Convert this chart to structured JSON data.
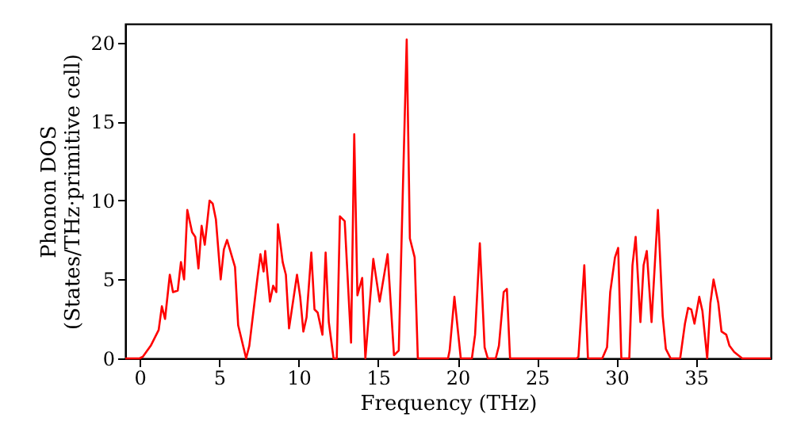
{
  "chart_data": {
    "type": "line",
    "xlabel": "Frequency (THz)",
    "ylabel": "Phonon DOS\n(States/THz·primitive cell)",
    "xlim": [
      -0.9,
      39.7
    ],
    "ylim": [
      0,
      21.2
    ],
    "xticks": [
      0,
      5,
      10,
      15,
      20,
      25,
      30,
      35
    ],
    "yticks": [
      0,
      5,
      10,
      15,
      20
    ],
    "grid": false,
    "x": [
      -0.9,
      0,
      0.2,
      0.7,
      1.2,
      1.4,
      1.6,
      1.9,
      2.1,
      2.4,
      2.6,
      2.8,
      3.0,
      3.3,
      3.5,
      3.7,
      3.9,
      4.1,
      4.4,
      4.6,
      4.8,
      5.1,
      5.3,
      5.5,
      6.0,
      6.2,
      6.7,
      6.9,
      7.4,
      7.6,
      7.8,
      7.9,
      8.2,
      8.4,
      8.6,
      8.7,
      9.0,
      9.2,
      9.4,
      9.9,
      10.1,
      10.3,
      10.5,
      10.8,
      11.0,
      11.2,
      11.5,
      11.7,
      11.9,
      12.2,
      12.4,
      12.6,
      12.9,
      13.3,
      13.5,
      13.7,
      14.0,
      14.2,
      14.7,
      15.1,
      15.6,
      16.0,
      16.3,
      16.8,
      17.0,
      17.3,
      17.5,
      19.4,
      19.5,
      19.8,
      20.2,
      20.9,
      21.1,
      21.4,
      21.7,
      21.9,
      22.4,
      22.6,
      22.9,
      23.1,
      23.3,
      27.5,
      27.6,
      27.97,
      28.2,
      29.1,
      29.4,
      29.6,
      29.9,
      30.1,
      30.3,
      30.8,
      31.0,
      31.2,
      31.5,
      31.7,
      31.9,
      32.2,
      32.6,
      32.9,
      33.1,
      33.4,
      34.0,
      34.3,
      34.5,
      34.7,
      34.9,
      35.2,
      35.4,
      35.7,
      35.9,
      36.1,
      36.4,
      36.6,
      36.9,
      37.1,
      37.4,
      37.9,
      39.7
    ],
    "series": [
      {
        "color": "#ff0000",
        "values": [
          0,
          0,
          0.1,
          0.8,
          1.8,
          3.3,
          2.5,
          5.3,
          4.2,
          4.3,
          6.1,
          5.0,
          9.4,
          8.0,
          7.7,
          5.7,
          8.4,
          7.2,
          10.0,
          9.8,
          8.8,
          5.0,
          6.9,
          7.5,
          5.8,
          2.1,
          0,
          0.8,
          5.0,
          6.6,
          5.5,
          6.8,
          3.6,
          4.6,
          4.2,
          8.5,
          6.1,
          5.3,
          1.9,
          5.3,
          3.9,
          1.7,
          2.6,
          6.7,
          3.1,
          2.9,
          1.5,
          6.7,
          2.3,
          0,
          0,
          9.0,
          8.7,
          1.0,
          14.2,
          4.0,
          5.1,
          0,
          6.3,
          3.6,
          6.6,
          0.2,
          0.5,
          20.2,
          7.6,
          6.4,
          0,
          0,
          0.5,
          3.9,
          0,
          0,
          1.5,
          7.3,
          0.7,
          0,
          0,
          0.8,
          4.2,
          4.4,
          0,
          0,
          0.1,
          5.9,
          0,
          0,
          0.7,
          4.2,
          6.4,
          7.0,
          0,
          0,
          5.9,
          7.7,
          2.3,
          5.9,
          6.8,
          2.3,
          9.4,
          2.7,
          0.6,
          0,
          0,
          2.2,
          3.2,
          3.1,
          2.2,
          3.9,
          3.0,
          0,
          3.5,
          5.0,
          3.5,
          1.7,
          1.5,
          0.8,
          0.4,
          0,
          0
        ]
      }
    ]
  }
}
